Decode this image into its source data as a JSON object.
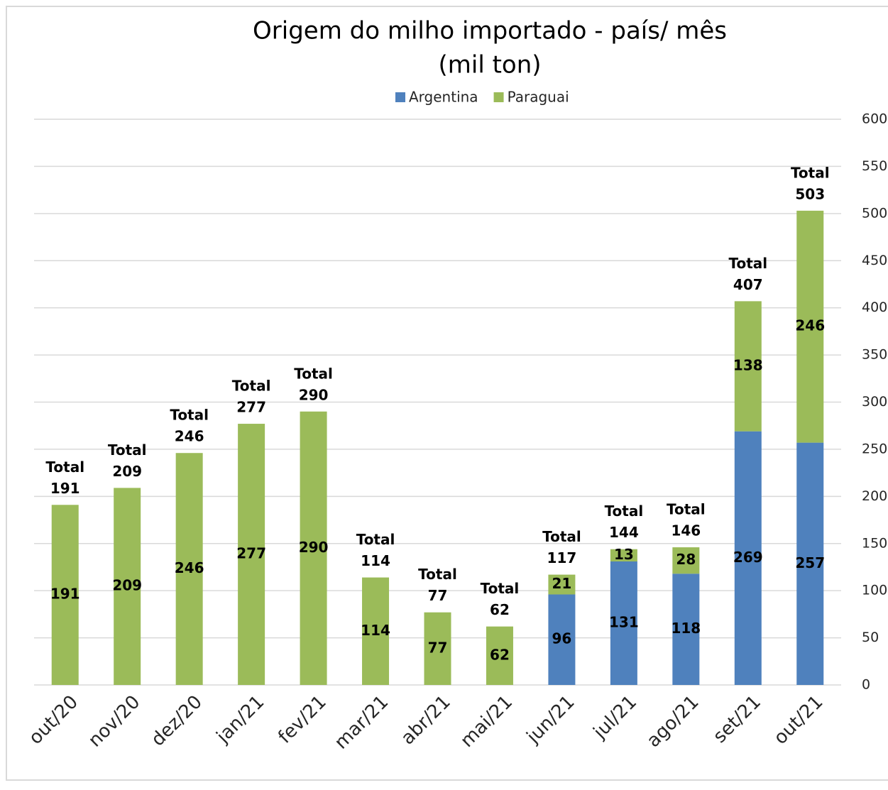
{
  "chart_data": {
    "type": "stacked_bar",
    "title": "Origem do milho importado - país/ mês",
    "subtitle": "(mil ton)",
    "categories": [
      "out/20",
      "nov/20",
      "dez/20",
      "jan/21",
      "fev/21",
      "mar/21",
      "abr/21",
      "mai/21",
      "jun/21",
      "jul/21",
      "ago/21",
      "set/21",
      "out/21"
    ],
    "series": [
      {
        "name": "Argentina",
        "color": "#4f81bd",
        "values": [
          null,
          null,
          null,
          null,
          null,
          null,
          null,
          null,
          96,
          131,
          118,
          269,
          257
        ]
      },
      {
        "name": "Paraguai",
        "color": "#9bbb59",
        "values": [
          191,
          209,
          246,
          277,
          290,
          114,
          77,
          62,
          21,
          13,
          28,
          138,
          246
        ]
      }
    ],
    "total_label": "Total",
    "totals": [
      191,
      209,
      246,
      277,
      290,
      114,
      77,
      62,
      117,
      144,
      146,
      407,
      503
    ],
    "ylim": [
      0,
      600
    ],
    "yticks": [
      0,
      50,
      100,
      150,
      200,
      250,
      300,
      350,
      400,
      450,
      500,
      550,
      600
    ],
    "grid": true,
    "legend": "top",
    "y_axis_side": "right"
  }
}
